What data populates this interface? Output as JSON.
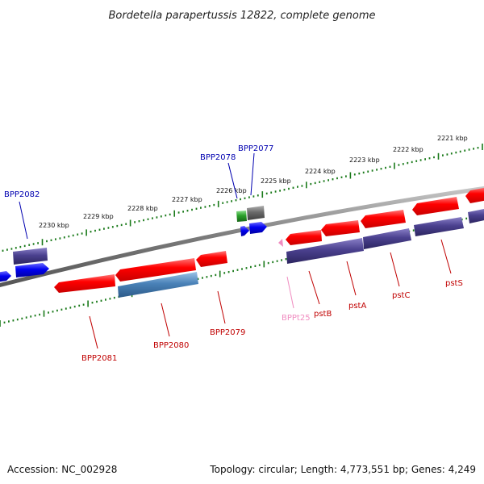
{
  "title": "Bordetella parapertussis 12822, complete genome",
  "footer": {
    "accession": "Accession: NC_002928",
    "summary": "Topology: circular; Length: 4,773,551 bp; Genes: 4,249"
  },
  "colors": {
    "backbone": "#808080",
    "tick": "#1a7a1a",
    "red_gene": "#f00000",
    "purple_gene": "#4b418f",
    "blue_gene": "#0000f0",
    "steel_gene": "#4a82b8",
    "gray_gene": "#6b6b6b",
    "green_gene": "#2aa02a",
    "pink_gene": "#f08cc0",
    "label_blue": "#0000b0",
    "label_red": "#c00000",
    "label_pink": "#f08cc0"
  },
  "scale_labels": [
    "2221 kbp",
    "2222 kbp",
    "2223 kbp",
    "2224 kbp",
    "2225 kbp",
    "2226 kbp",
    "2227 kbp",
    "2228 kbp",
    "2229 kbp",
    "2230 kbp"
  ],
  "gene_labels": [
    {
      "text": "BPP2082",
      "color": "label_blue"
    },
    {
      "text": "BPP2078",
      "color": "label_blue"
    },
    {
      "text": "BPP2077",
      "color": "label_blue"
    },
    {
      "text": "BPP2081",
      "color": "label_red"
    },
    {
      "text": "BPP2080",
      "color": "label_red"
    },
    {
      "text": "BPP2079",
      "color": "label_red"
    },
    {
      "text": "BPPt25",
      "color": "label_pink"
    },
    {
      "text": "pstB",
      "color": "label_red"
    },
    {
      "text": "pstA",
      "color": "label_red"
    },
    {
      "text": "pstC",
      "color": "label_red"
    },
    {
      "text": "pstS",
      "color": "label_red"
    }
  ]
}
